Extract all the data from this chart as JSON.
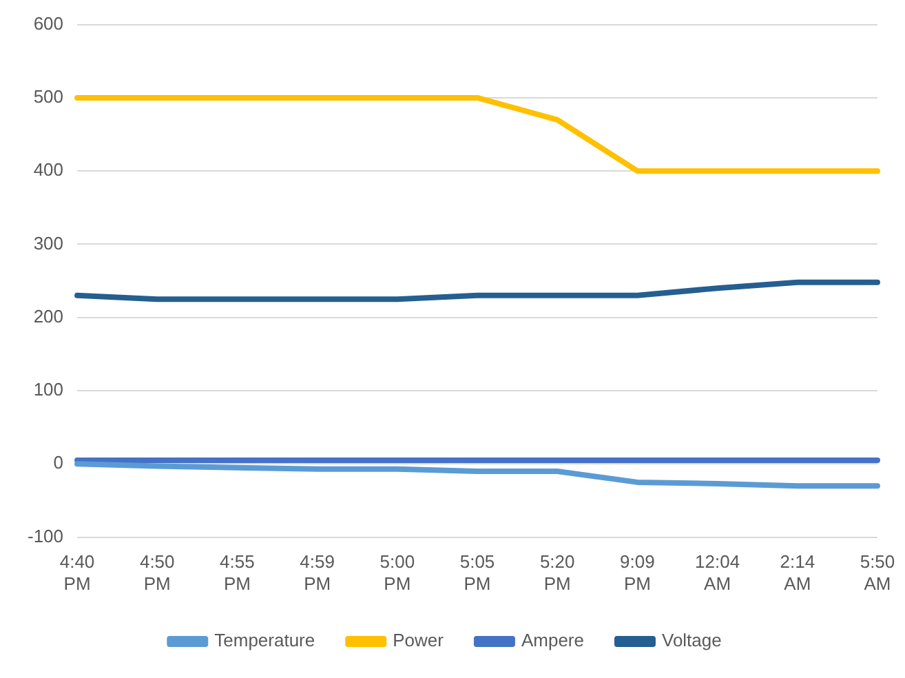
{
  "chart_data": {
    "type": "line",
    "categories": [
      "4:40 PM",
      "4:50 PM",
      "4:55 PM",
      "4:59 PM",
      "5:00 PM",
      "5:05 PM",
      "5:20 PM",
      "9:09 PM",
      "12:04 AM",
      "2:14 AM",
      "5:50 AM"
    ],
    "series": [
      {
        "name": "Temperature",
        "color": "#5b9bd5",
        "values": [
          0,
          -3,
          -5,
          -7,
          -7,
          -10,
          -10,
          -25,
          -27,
          -30,
          -30
        ]
      },
      {
        "name": "Power",
        "color": "#ffc000",
        "values": [
          500,
          500,
          500,
          500,
          500,
          500,
          470,
          400,
          400,
          400,
          400
        ]
      },
      {
        "name": "Ampere",
        "color": "#4472c4",
        "values": [
          5,
          5,
          5,
          5,
          5,
          5,
          5,
          5,
          5,
          5,
          5
        ]
      },
      {
        "name": "Voltage",
        "color": "#255e91",
        "values": [
          230,
          225,
          225,
          225,
          225,
          230,
          230,
          230,
          240,
          248,
          248
        ]
      }
    ],
    "ylim": [
      -100,
      600
    ],
    "yticks": [
      -100,
      0,
      100,
      200,
      300,
      400,
      500,
      600
    ],
    "grid": "y",
    "legend": "bottom",
    "marker": "none",
    "line_style": "solid"
  }
}
